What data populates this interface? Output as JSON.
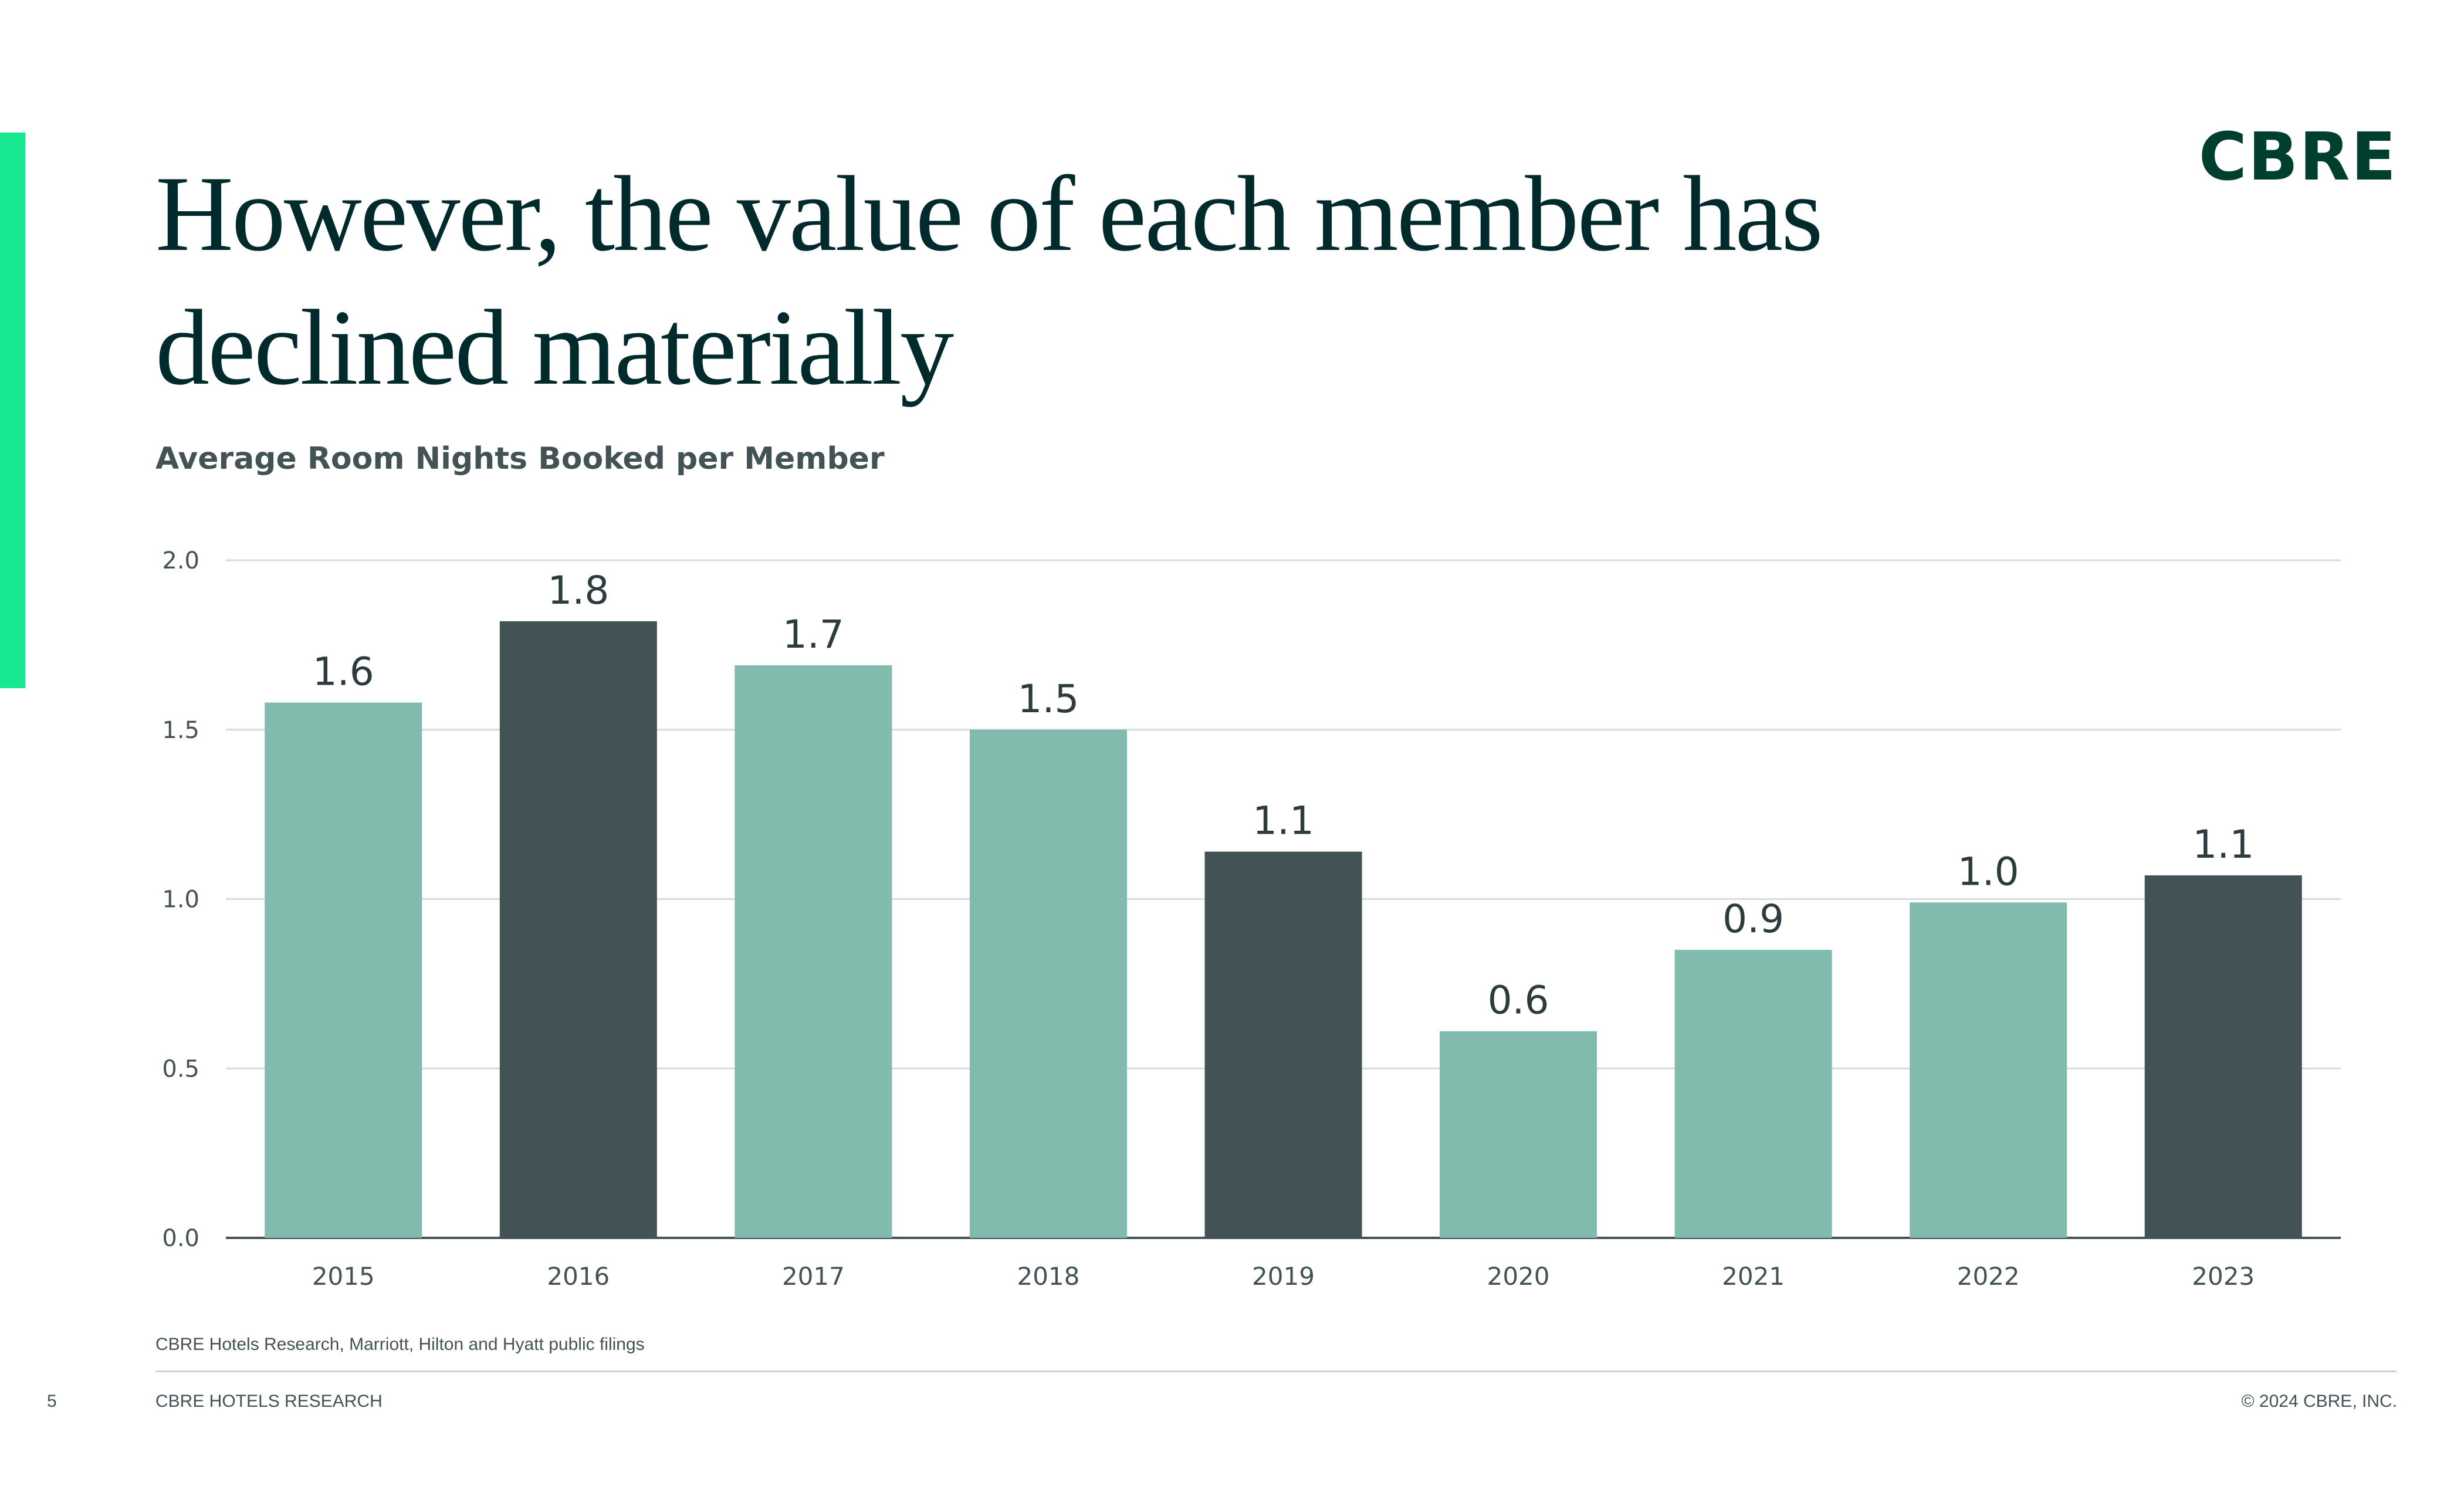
{
  "slide": {
    "headline": "However, the value of each member has declined materially",
    "logo": "CBRE",
    "source": "CBRE Hotels Research, Marriott, Hilton and Hyatt public filings",
    "page_number": "5",
    "footer_label": "CBRE  HOTELS RESEARCH",
    "copyright": "© 2024 CBRE, INC."
  },
  "colors": {
    "accent": "#17e88f",
    "light_bar": "#80bbad",
    "dark_bar": "#435254",
    "headline": "#012a2d"
  },
  "chart_data": {
    "type": "bar",
    "title": "Average Room Nights Booked per Member",
    "categories": [
      "2015",
      "2016",
      "2017",
      "2018",
      "2019",
      "2020",
      "2021",
      "2022",
      "2023"
    ],
    "values": [
      1.58,
      1.82,
      1.69,
      1.5,
      1.14,
      0.61,
      0.85,
      0.99,
      1.07
    ],
    "data_labels": [
      "1.6",
      "1.8",
      "1.7",
      "1.5",
      "1.1",
      "0.6",
      "0.9",
      "1.0",
      "1.1"
    ],
    "highlighted": [
      false,
      true,
      false,
      false,
      true,
      false,
      false,
      false,
      true
    ],
    "ylim": [
      0,
      2.0
    ],
    "yticks": [
      "0.0",
      "0.5",
      "1.0",
      "1.5",
      "2.0"
    ],
    "ytick_values": [
      0,
      0.5,
      1.0,
      1.5,
      2.0
    ],
    "xlabel": "",
    "ylabel": "",
    "grid": true,
    "legend": "none"
  }
}
